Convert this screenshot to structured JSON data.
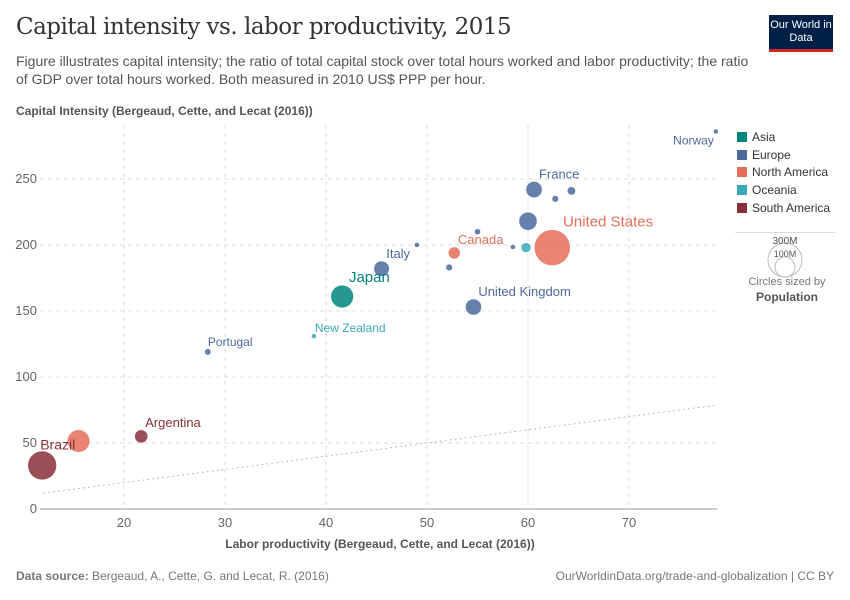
{
  "header": {
    "title": "Capital intensity vs. labor productivity, 2015",
    "subtitle": "Figure illustrates capital intensity; the ratio of total capital stock over total hours worked and labor productivity; the ratio of GDP over total hours worked. Both measured in 2010 US$ PPP per hour.",
    "logo": "Our World in Data"
  },
  "footer": {
    "source_label": "Data source:",
    "source": "Bergeaud, A., Cette, G. and Lecat, R. (2016)",
    "url": "OurWorldinData.org/trade-and-globalization | CC BY"
  },
  "legend": {
    "items": [
      {
        "label": "Asia",
        "color": "#00847e"
      },
      {
        "label": "Europe",
        "color": "#4c6a9c"
      },
      {
        "label": "North America",
        "color": "#e56e5a"
      },
      {
        "label": "Oceania",
        "color": "#38aaba"
      },
      {
        "label": "South America",
        "color": "#883039"
      }
    ],
    "size_title": "Circles sized by",
    "size_var": "Population",
    "size_big": "300M",
    "size_small": "100M"
  },
  "chart_data": {
    "type": "scatter",
    "title": "Capital intensity vs. labor productivity, 2015",
    "xlabel": "Labor productivity (Bergeaud, Cette, and Lecat (2016))",
    "ylabel": "Capital Intensity (Bergeaud, Cette, and Lecat (2016))",
    "xlim": [
      12,
      78.6
    ],
    "ylim": [
      0,
      290
    ],
    "xticks": [
      20,
      30,
      40,
      50,
      60,
      70
    ],
    "yticks": [
      0,
      50,
      100,
      150,
      200,
      250
    ],
    "grid": true,
    "legend_position": "right",
    "reference_line": "y = x",
    "points": [
      {
        "label": "Norway",
        "x": 78.6,
        "y": 286,
        "region": "Europe",
        "pop": 5
      },
      {
        "label": "France",
        "x": 60.6,
        "y": 242,
        "region": "Europe",
        "pop": 66
      },
      {
        "label": "",
        "x": 64.3,
        "y": 241,
        "region": "Europe",
        "pop": 17
      },
      {
        "label": "",
        "x": 62.7,
        "y": 235,
        "region": "Europe",
        "pop": 11
      },
      {
        "label": "",
        "x": 60.0,
        "y": 218,
        "region": "Europe",
        "pop": 81
      },
      {
        "label": "United States",
        "x": 62.4,
        "y": 198,
        "region": "North America",
        "pop": 320
      },
      {
        "label": "",
        "x": 59.8,
        "y": 198,
        "region": "Oceania",
        "pop": 24
      },
      {
        "label": "",
        "x": 58.5,
        "y": 198.5,
        "region": "Europe",
        "pop": 6
      },
      {
        "label": "",
        "x": 55.0,
        "y": 210,
        "region": "Europe",
        "pop": 9
      },
      {
        "label": "",
        "x": 49.0,
        "y": 200,
        "region": "Europe",
        "pop": 5
      },
      {
        "label": "Canada",
        "x": 52.7,
        "y": 194,
        "region": "North America",
        "pop": 36
      },
      {
        "label": "",
        "x": 52.2,
        "y": 183,
        "region": "Europe",
        "pop": 11
      },
      {
        "label": "United Kingdom",
        "x": 54.6,
        "y": 153,
        "region": "Europe",
        "pop": 65
      },
      {
        "label": "Italy",
        "x": 45.5,
        "y": 182,
        "region": "Europe",
        "pop": 60
      },
      {
        "label": "Japan",
        "x": 41.6,
        "y": 161,
        "region": "Asia",
        "pop": 127
      },
      {
        "label": "New Zealand",
        "x": 38.8,
        "y": 131,
        "region": "Oceania",
        "pop": 4.6
      },
      {
        "label": "Portugal",
        "x": 28.3,
        "y": 119,
        "region": "Europe",
        "pop": 10
      },
      {
        "label": "Argentina",
        "x": 21.7,
        "y": 55,
        "region": "South America",
        "pop": 43
      },
      {
        "label": "",
        "x": 15.5,
        "y": 51.5,
        "region": "North America",
        "pop": 125
      },
      {
        "label": "Brazil",
        "x": 11.9,
        "y": 33,
        "region": "South America",
        "pop": 205
      }
    ]
  }
}
